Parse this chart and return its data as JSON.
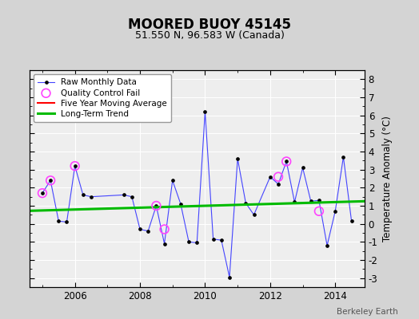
{
  "title": "MOORED BUOY 45145",
  "subtitle": "51.550 N, 96.583 W (Canada)",
  "ylabel": "Temperature Anomaly (°C)",
  "watermark": "Berkeley Earth",
  "ylim": [
    -3.5,
    8.5
  ],
  "xlim": [
    2004.6,
    2014.9
  ],
  "xticks": [
    2006,
    2008,
    2010,
    2012,
    2014
  ],
  "yticks": [
    -3,
    -2,
    -1,
    0,
    1,
    2,
    3,
    4,
    5,
    6,
    7,
    8
  ],
  "raw_x": [
    2005.0,
    2005.25,
    2005.5,
    2005.75,
    2006.0,
    2006.25,
    2006.5,
    2007.5,
    2007.75,
    2008.0,
    2008.25,
    2008.5,
    2008.75,
    2009.0,
    2009.25,
    2009.5,
    2009.75,
    2010.0,
    2010.25,
    2010.5,
    2010.75,
    2011.0,
    2011.25,
    2011.5,
    2012.0,
    2012.25,
    2012.5,
    2012.75,
    2013.0,
    2013.25,
    2013.5,
    2013.75,
    2014.0,
    2014.25,
    2014.5
  ],
  "raw_y": [
    1.7,
    2.4,
    0.15,
    0.1,
    3.2,
    1.6,
    1.5,
    1.6,
    1.5,
    -0.3,
    -0.4,
    1.0,
    -1.1,
    2.4,
    1.1,
    -1.0,
    -1.05,
    6.2,
    -0.85,
    -0.9,
    -2.95,
    3.6,
    1.15,
    0.5,
    2.6,
    2.2,
    3.45,
    1.2,
    3.1,
    1.25,
    1.3,
    -1.2,
    0.7,
    3.7,
    0.15
  ],
  "qc_fail_x": [
    2005.0,
    2005.25,
    2006.0,
    2008.5,
    2008.75,
    2012.25,
    2012.5,
    2013.5
  ],
  "qc_fail_y": [
    1.7,
    2.4,
    3.2,
    1.0,
    -0.3,
    2.6,
    3.45,
    0.7
  ],
  "trend_x": [
    2004.6,
    2014.9
  ],
  "trend_y": [
    0.72,
    1.25
  ],
  "bg_color": "#d4d4d4",
  "plot_bg_color": "#eeeeee",
  "raw_line_color": "#4444ff",
  "raw_marker_color": "#000000",
  "qc_marker_color": "#ff44ff",
  "moving_avg_color": "#ff0000",
  "trend_color": "#00bb00",
  "grid_color": "#ffffff"
}
